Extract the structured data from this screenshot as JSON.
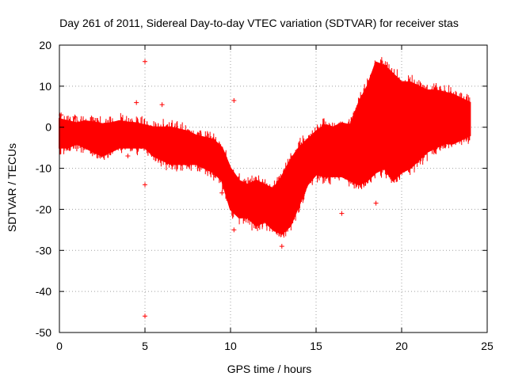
{
  "chart_data": {
    "type": "scatter",
    "title": "Day 261 of 2011, Sidereal Day-to-day VTEC variation (SDTVAR) for receiver stas",
    "xlabel": "GPS time / hours",
    "ylabel": "SDTVAR / TECUs",
    "xlim": [
      0,
      25
    ],
    "ylim": [
      -50,
      20
    ],
    "xticks": [
      0,
      5,
      10,
      15,
      20,
      25
    ],
    "yticks": [
      -50,
      -40,
      -30,
      -20,
      -10,
      0,
      10,
      20
    ],
    "xtick_labels": [
      "0",
      "5",
      "10",
      "15",
      "20",
      "25"
    ],
    "ytick_labels": [
      "-50",
      "-40",
      "-30",
      "-20",
      "-10",
      "0",
      "10",
      "20"
    ],
    "grid": true,
    "marker": "+",
    "series_color": "#ff0000",
    "series": [
      {
        "name": "SDTVAR",
        "envelope": {
          "x": [
            0,
            0.5,
            1,
            1.5,
            2,
            2.5,
            3,
            3.5,
            4,
            4.5,
            5,
            5.5,
            6,
            6.5,
            7,
            7.5,
            8,
            8.5,
            9,
            9.5,
            10,
            10.5,
            11,
            11.5,
            12,
            12.5,
            13,
            13.5,
            14,
            14.5,
            15,
            15.5,
            16,
            16.5,
            17,
            17.5,
            18,
            18.5,
            19,
            19.5,
            20,
            20.5,
            21,
            21.5,
            22,
            22.5,
            23,
            23.5,
            24
          ],
          "upper": [
            2,
            1.5,
            1,
            1.5,
            1.2,
            0.8,
            1,
            1.5,
            1.2,
            1,
            0.5,
            0,
            0,
            0,
            -0.5,
            -1,
            -2,
            -2.5,
            -3,
            -5,
            -10,
            -13,
            -14,
            -13,
            -14,
            -15,
            -12,
            -8,
            -5,
            -3,
            -1,
            0.5,
            0,
            1,
            0.5,
            6,
            10,
            15.8,
            15,
            13,
            11,
            11,
            10,
            9,
            9,
            8.5,
            8,
            7,
            6
          ],
          "lower": [
            -5,
            -5,
            -4,
            -5,
            -6,
            -7,
            -6,
            -5,
            -5,
            -5,
            -5,
            -7,
            -8,
            -9,
            -9,
            -9,
            -9,
            -10,
            -11,
            -13,
            -20,
            -22,
            -22,
            -24,
            -23,
            -25,
            -26,
            -24,
            -19,
            -14,
            -11.5,
            -12,
            -12,
            -12,
            -13,
            -14,
            -13,
            -11,
            -10,
            -13,
            -11,
            -10,
            -8,
            -6,
            -5,
            -4,
            -4,
            -3,
            -2
          ]
        },
        "outliers": [
          {
            "x": 0.1,
            "y": 3
          },
          {
            "x": 0.9,
            "y": 2.5
          },
          {
            "x": 4.5,
            "y": 6
          },
          {
            "x": 4.0,
            "y": -7
          },
          {
            "x": 5.0,
            "y": 16
          },
          {
            "x": 5.0,
            "y": -14
          },
          {
            "x": 5.0,
            "y": -46
          },
          {
            "x": 6.0,
            "y": 5.5
          },
          {
            "x": 9.5,
            "y": -16
          },
          {
            "x": 10.2,
            "y": 6.5
          },
          {
            "x": 10.2,
            "y": -25
          },
          {
            "x": 13.0,
            "y": -29
          },
          {
            "x": 16.5,
            "y": -21
          },
          {
            "x": 18.5,
            "y": -18.5
          },
          {
            "x": 22.5,
            "y": -4.5
          }
        ]
      }
    ]
  }
}
